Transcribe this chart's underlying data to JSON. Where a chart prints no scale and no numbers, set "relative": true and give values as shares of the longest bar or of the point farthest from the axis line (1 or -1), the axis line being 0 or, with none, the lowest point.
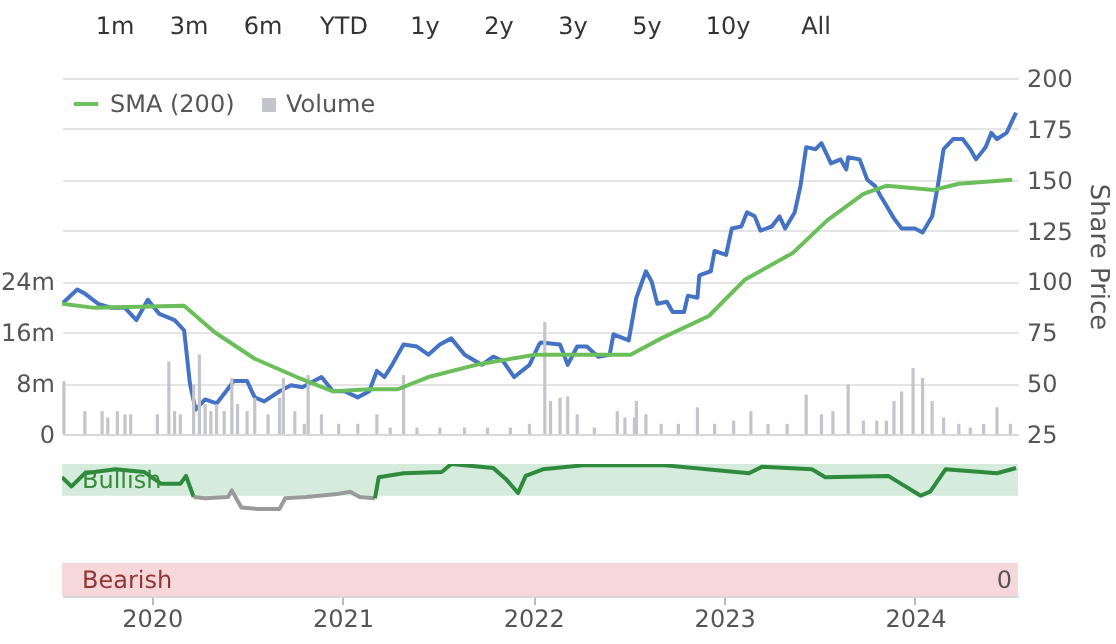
{
  "chart_data": [
    {
      "type": "line",
      "annotations": [
        "1m",
        "3m",
        "6m",
        "YTD",
        "1y",
        "2y",
        "3y",
        "5y",
        "10y",
        "All"
      ],
      "xlim": [
        2019.53,
        2024.54
      ],
      "ylim": [
        25,
        200
      ],
      "yticks": [
        25,
        50,
        75,
        100,
        125,
        150,
        175,
        200
      ],
      "ylabel": "Share Price",
      "y2lim": [
        0,
        56
      ],
      "y2ticks": [
        0,
        {
          "value": 8,
          "label": "8m"
        },
        {
          "value": 16,
          "label": "16m"
        },
        {
          "value": 24,
          "label": "24m"
        }
      ],
      "grid": "y",
      "legend": "top left",
      "tick_labels": "y",
      "series": [
        {
          "type": "line",
          "color": "#4472c4",
          "x": [
            2019.53,
            2019.61,
            2019.65,
            2019.72,
            2019.79,
            2019.86,
            2019.92,
            2019.98,
            2020.04,
            2020.12,
            2020.17,
            2020.2,
            2020.23,
            2020.28,
            2020.34,
            2020.39,
            2020.43,
            2020.5,
            2020.54,
            2020.59,
            2020.67,
            2020.73,
            2020.79,
            2020.89,
            2020.95,
            2021.01,
            2021.08,
            2021.14,
            2021.18,
            2021.22,
            2021.26,
            2021.32,
            2021.39,
            2021.45,
            2021.51,
            2021.57,
            2021.64,
            2021.73,
            2021.79,
            2021.84,
            2021.9,
            2021.98,
            2022.03,
            2022.04,
            2022.14,
            2022.18,
            2022.23,
            2022.28,
            2022.34,
            2022.4,
            2022.42,
            2022.5,
            2022.54,
            2022.59,
            2022.62,
            2022.65,
            2022.7,
            2022.73,
            2022.79,
            2022.81,
            2022.86,
            2022.87,
            2022.93,
            2022.95,
            2023.01,
            2023.04,
            2023.09,
            2023.12,
            2023.16,
            2023.19,
            2023.25,
            2023.29,
            2023.32,
            2023.37,
            2023.4,
            2023.43,
            2023.48,
            2023.51,
            2023.56,
            2023.61,
            2023.64,
            2023.65,
            2023.71,
            2023.75,
            2023.79,
            2023.82,
            2023.89,
            2023.93,
            2024.0,
            2024.04,
            2024.09,
            2024.12,
            2024.15,
            2024.2,
            2024.25,
            2024.29,
            2024.32,
            2024.37,
            2024.4,
            2024.43,
            2024.48,
            2024.51,
            2024.53
          ],
          "values": [
            89,
            96,
            94,
            89,
            87,
            87,
            81,
            91,
            84,
            81,
            76,
            50,
            37,
            42,
            40,
            46,
            51,
            51,
            43,
            41,
            46,
            49,
            48,
            53,
            46,
            46,
            43,
            46,
            56,
            53,
            59,
            69,
            68,
            64,
            69,
            72,
            64,
            59,
            63,
            61,
            53,
            59,
            69,
            70,
            69,
            59,
            68,
            68,
            63,
            64,
            74,
            71,
            92,
            105,
            100,
            89,
            90,
            85,
            85,
            93,
            92,
            103,
            105,
            115,
            113,
            126,
            127,
            134,
            132,
            125,
            127,
            132,
            126,
            134,
            147,
            166,
            165,
            168,
            158,
            160,
            155,
            161,
            160,
            150,
            147,
            142,
            131,
            126,
            126,
            124,
            132,
            147,
            165,
            170,
            170,
            165,
            160,
            166,
            173,
            170,
            173,
            179,
            183
          ]
        },
        {
          "type": "line",
          "name": "SMA (200)",
          "color": "#6abf5a",
          "x": [
            2019.53,
            2019.7,
            2020.17,
            2020.33,
            2020.54,
            2020.76,
            2020.95,
            2021.14,
            2021.29,
            2021.45,
            2021.7,
            2022.01,
            2022.51,
            2022.67,
            2022.92,
            2023.11,
            2023.36,
            2023.54,
            2023.73,
            2023.85,
            2024.1,
            2024.23,
            2024.51
          ],
          "values": [
            89,
            87,
            88,
            75,
            62,
            53,
            46,
            47,
            47,
            53,
            59,
            64,
            64,
            72,
            83,
            101,
            114,
            130,
            143,
            147,
            145,
            148,
            150
          ]
        },
        {
          "type": "bar",
          "name": "Volume",
          "color": "#c4c4cc",
          "axis": "y2",
          "x": [
            2019.54,
            2019.65,
            2019.74,
            2019.77,
            2019.82,
            2019.86,
            2019.89,
            2020.03,
            2020.09,
            2020.12,
            2020.15,
            2020.22,
            2020.25,
            2020.28,
            2020.31,
            2020.34,
            2020.38,
            2020.42,
            2020.45,
            2020.5,
            2020.54,
            2020.61,
            2020.67,
            2020.69,
            2020.75,
            2020.8,
            2020.82,
            2020.89,
            2020.98,
            2021.08,
            2021.18,
            2021.25,
            2021.32,
            2021.39,
            2021.51,
            2021.64,
            2021.76,
            2021.88,
            2021.98,
            2022.06,
            2022.09,
            2022.14,
            2022.18,
            2022.23,
            2022.32,
            2022.44,
            2022.48,
            2022.53,
            2022.54,
            2022.59,
            2022.67,
            2022.76,
            2022.86,
            2022.95,
            2023.05,
            2023.14,
            2023.23,
            2023.33,
            2023.43,
            2023.51,
            2023.57,
            2023.65,
            2023.73,
            2023.8,
            2023.85,
            2023.89,
            2023.93,
            2023.99,
            2024.04,
            2024.09,
            2024.15,
            2024.23,
            2024.29,
            2024.36,
            2024.43,
            2024.5
          ],
          "values": [
            8.3,
            3.6,
            3.6,
            2.6,
            3.6,
            3.1,
            3.1,
            3.1,
            11.4,
            3.6,
            3.1,
            7.8,
            12.5,
            4.7,
            3.6,
            4.7,
            3.6,
            8.8,
            4.7,
            3.6,
            5.7,
            3.1,
            5.7,
            8.8,
            3.6,
            1.6,
            9.3,
            3.1,
            1.6,
            1.6,
            3.1,
            1,
            9.3,
            1,
            1,
            1,
            1,
            1,
            1.6,
            17.6,
            5.2,
            5.7,
            5.9,
            3.1,
            1,
            3.6,
            2.6,
            2.6,
            5.2,
            3.1,
            1.6,
            1.6,
            4.2,
            1.6,
            2.1,
            3.6,
            1.6,
            1.6,
            6.2,
            3.1,
            3.6,
            7.8,
            2.1,
            2.1,
            2.1,
            5.2,
            6.7,
            10.4,
            8.8,
            5.2,
            2.6,
            1.6,
            1,
            1.6,
            4.2,
            1.6
          ]
        }
      ]
    },
    {
      "type": "line",
      "relative": true,
      "xlim": [
        2019.53,
        2024.54
      ],
      "xticks": [
        2020,
        2021,
        2022,
        2023,
        2024
      ],
      "annotations": [
        "0"
      ],
      "bands": [
        {
          "axis": "y",
          "from": 0.76,
          "to": 1.0,
          "label": "Bullish",
          "color": "#d5ebdc"
        },
        {
          "axis": "y",
          "from": 0,
          "to": 0.25,
          "label": "Bearish",
          "color": "#f6d7da"
        }
      ],
      "series": [
        {
          "color": "#2e8b3e",
          "x": [
            2019.53,
            2019.58,
            2019.65,
            2019.81,
            2019.96,
            2020.05,
            2020.15,
            2020.18,
            2020.22
          ],
          "values": [
            0.9,
            0.83,
            0.93,
            0.96,
            0.94,
            0.85,
            0.85,
            0.91,
            0.75
          ]
        },
        {
          "color": "#9a9a9a",
          "x": [
            2020.22,
            2020.28,
            2020.4,
            2020.42,
            2020.47,
            2020.55,
            2020.67,
            2020.7,
            2020.81,
            2020.96,
            2021.04,
            2021.09,
            2021.17
          ],
          "values": [
            0.75,
            0.74,
            0.75,
            0.8,
            0.67,
            0.66,
            0.66,
            0.74,
            0.75,
            0.77,
            0.79,
            0.75,
            0.74
          ]
        },
        {
          "color": "#2e8b3e",
          "x": [
            2021.17,
            2021.19,
            2021.32,
            2021.52,
            2021.57,
            2021.79,
            2021.86,
            2021.92,
            2021.96,
            2022.05,
            2022.26,
            2022.69,
            2023.13,
            2023.2,
            2023.46,
            2023.53,
            2023.86,
            2024.03,
            2024.08,
            2024.16,
            2024.43,
            2024.53
          ],
          "values": [
            0.74,
            0.9,
            0.93,
            0.94,
            1.0,
            0.97,
            0.88,
            0.78,
            0.91,
            0.96,
            0.99,
            0.99,
            0.93,
            0.98,
            0.96,
            0.9,
            0.91,
            0.76,
            0.79,
            0.96,
            0.93,
            0.97
          ]
        }
      ]
    }
  ]
}
